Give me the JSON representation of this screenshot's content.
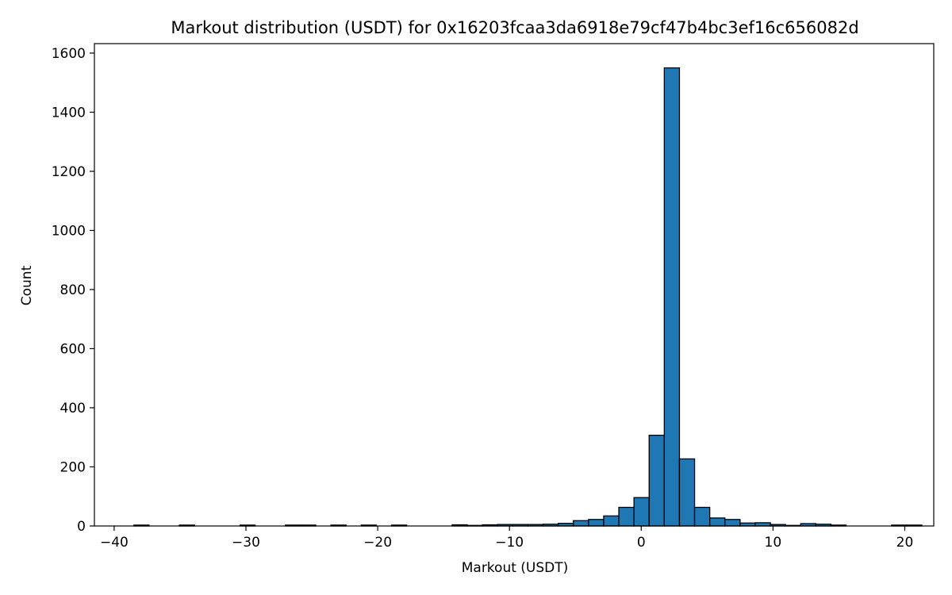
{
  "chart_data": {
    "type": "bar",
    "title": "Markout distribution (USDT) for 0x16203fcaa3da6918e79cf47b4bc3ef16c656082d",
    "xlabel": "Markout (USDT)",
    "ylabel": "Count",
    "xlim": [
      -41.5,
      22.2
    ],
    "ylim": [
      0,
      1632
    ],
    "xticks": [
      -40,
      -30,
      -20,
      -10,
      0,
      10,
      20
    ],
    "xtick_labels": [
      "−40",
      "−30",
      "−20",
      "−10",
      "0",
      "10",
      "20"
    ],
    "yticks": [
      0,
      200,
      400,
      600,
      800,
      1000,
      1200,
      1400,
      1600
    ],
    "ytick_labels": [
      "0",
      "200",
      "400",
      "600",
      "800",
      "1000",
      "1200",
      "1400",
      "1600"
    ],
    "bin_start": -38.5,
    "bin_width": 1.15,
    "values": [
      3,
      0,
      0,
      3,
      0,
      0,
      0,
      3,
      0,
      0,
      3,
      3,
      0,
      3,
      0,
      3,
      0,
      3,
      0,
      0,
      0,
      4,
      2,
      4,
      5,
      5,
      5,
      6,
      9,
      18,
      22,
      34,
      63,
      96,
      307,
      1550,
      227,
      63,
      27,
      22,
      10,
      11,
      5,
      2,
      8,
      6,
      3,
      0,
      0,
      0,
      3,
      3
    ],
    "bar_color": "#1f77b4",
    "edge_color": "#000000",
    "grid": false,
    "legend": false
  }
}
